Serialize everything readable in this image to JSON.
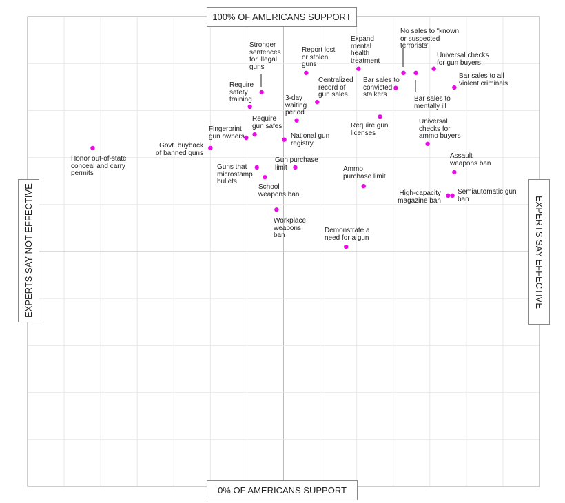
{
  "chart_data": {
    "type": "scatter",
    "top_label": "100% OF AMERICANS SUPPORT",
    "bottom_label": "0% OF AMERICANS SUPPORT",
    "left_label": "EXPERTS SAY NOT EFFECTIVE",
    "right_label": "EXPERTS SAY EFFECTIVE",
    "color": "#e60fe3",
    "xlim": [
      -7,
      7
    ],
    "xticks": [
      -7,
      -6,
      -5,
      -4,
      -3,
      -2,
      -1,
      0,
      1,
      2,
      3,
      4,
      5,
      6,
      7
    ],
    "ylim": [
      0,
      100
    ],
    "yticks": [
      0,
      10,
      20,
      30,
      40,
      50,
      60,
      70,
      80,
      90,
      100
    ],
    "grid": true,
    "labels": [
      "Honor out-of-state\nconceal and carry\npermits",
      "Govt. buyback\nof banned guns",
      "Fingerprint\ngun owners",
      "Require\ngun safes",
      "Require\nsafety\ntraining",
      "Stronger\nsentences\nfor illegal\nguns",
      "Report lost\nor stolen\nguns",
      "3-day\nwaiting\nperiod",
      "National gun\nregistry",
      "Centralized\nrecord of\ngun sales",
      "Expand\nmental\nhealth\ntreatment",
      "Bar sales to\nconvicted\nstalkers",
      "No sales to “known\nor suspected\nterrorists”",
      "Bar sales to\nmentally ill",
      "Universal checks\nfor gun buyers",
      "Bar sales to all\nviolent criminals",
      "Require gun\nlicenses",
      "Universal\nchecks for\nammo buyers",
      "Assault\nweapons ban",
      "High-capacity\nmagazine ban",
      "Semiautomatic gun\nban",
      "Ammo\npurchase limit",
      "Gun purchase\nlimit",
      "Guns that\nmicrostamp\nbullets",
      "School\nweapons ban",
      "Workplace\nweapons\nban",
      "Demonstrate a\nneed for a gun"
    ],
    "x": [
      -5.22,
      -2.0,
      -1.02,
      -0.79,
      -0.92,
      -0.6,
      0.62,
      0.36,
      0.02,
      0.92,
      2.05,
      3.07,
      3.28,
      3.62,
      4.11,
      4.67,
      2.64,
      3.94,
      4.67,
      4.5,
      4.62,
      2.19,
      0.32,
      -0.73,
      -0.51,
      -0.19,
      1.71
    ],
    "values": [
      72.0,
      72.0,
      74.2,
      74.9,
      80.8,
      83.9,
      88.0,
      77.9,
      73.8,
      81.8,
      88.9,
      84.8,
      88.0,
      88.0,
      88.9,
      84.9,
      78.7,
      72.9,
      66.9,
      61.9,
      61.9,
      63.9,
      67.9,
      67.9,
      65.8,
      58.9,
      51.0
    ]
  }
}
